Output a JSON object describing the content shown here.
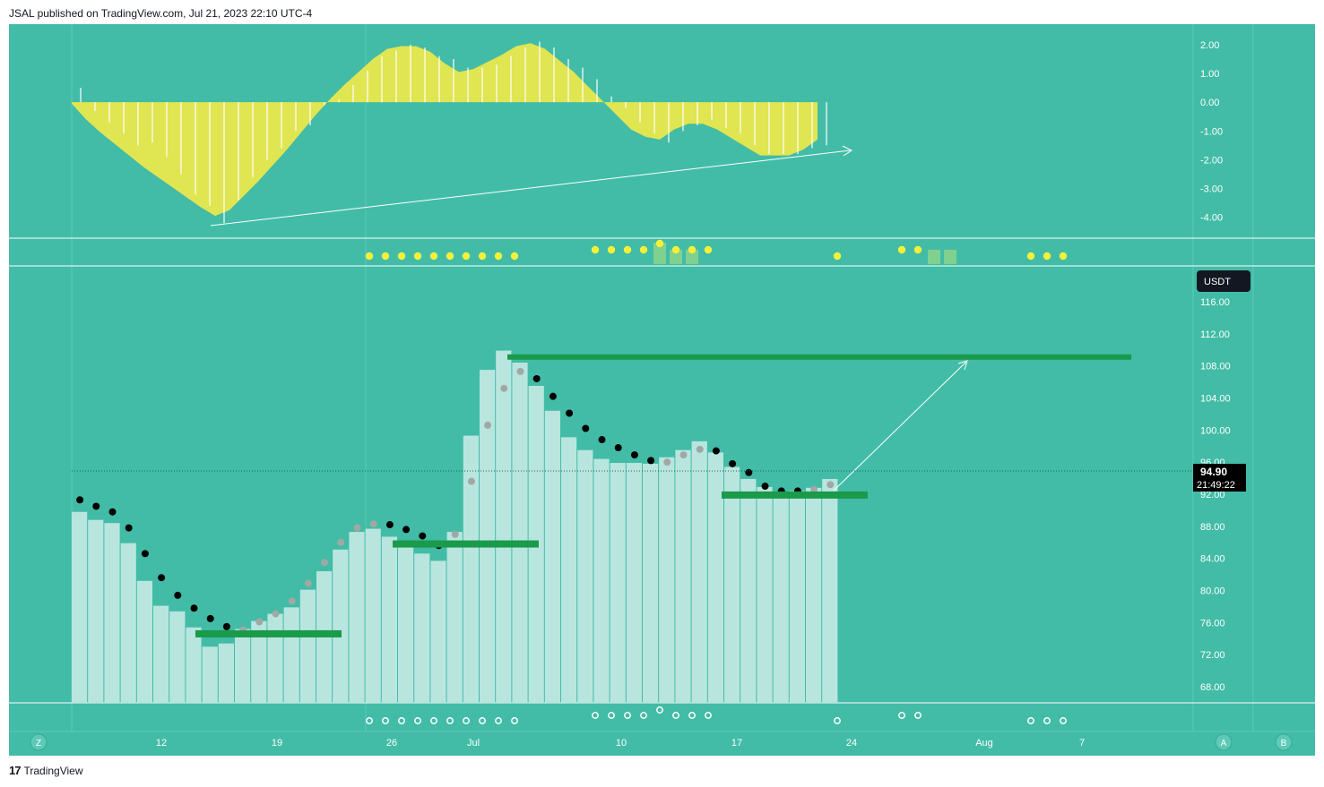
{
  "header": {
    "publish_line": "JSAL published on TradingView.com, Jul 21, 2023 22:10 UTC-4"
  },
  "footer": {
    "logo_text": "TradingView",
    "logo_mark": "17"
  },
  "colors": {
    "background": "#42bca6",
    "macd_fill": "#e0e552",
    "bar_fill": "#b8e6df",
    "psar_bear": "#000000",
    "psar_bull": "#a0a8a6",
    "support_line": "#1a9a4a",
    "trend_line": "#ffffff",
    "dot_yellow": "#f5f03a"
  },
  "currency_badge": "USDT",
  "price_badge": {
    "price": "94.90",
    "countdown": "21:49:22"
  },
  "corner_buttons": {
    "left": "Z",
    "right_a": "A",
    "right_b": "B"
  },
  "chart_data": [
    {
      "type": "area",
      "name_hint": "macd-panel",
      "y_ticks": [
        "2.00",
        "1.00",
        "0.00",
        "-1.00",
        "-2.00",
        "-3.00",
        "-4.00"
      ],
      "ylim": [
        -4.6,
        2.4
      ],
      "line_values": [
        -0.05,
        -0.6,
        -1.05,
        -1.45,
        -1.85,
        -2.25,
        -2.6,
        -2.95,
        -3.3,
        -3.65,
        -3.95,
        -3.75,
        -3.25,
        -2.75,
        -2.2,
        -1.65,
        -1.05,
        -0.45,
        0.1,
        0.6,
        1.05,
        1.5,
        1.85,
        1.95,
        1.95,
        1.75,
        1.35,
        1.05,
        1.15,
        1.4,
        1.65,
        1.95,
        2.05,
        1.85,
        1.45,
        1.05,
        0.55,
        0.05,
        -0.45,
        -0.95,
        -1.2,
        -1.3,
        -0.95,
        -0.75,
        -0.75,
        -0.95,
        -1.25,
        -1.55,
        -1.85,
        -1.85,
        -1.85,
        -1.65,
        -1.3
      ],
      "histogram": [
        0.5,
        -0.3,
        -0.7,
        -1.1,
        -1.5,
        -1.4,
        -1.9,
        -2.5,
        -3.2,
        -3.6,
        -4.2,
        -3.4,
        -2.6,
        -2.0,
        -1.6,
        -1.0,
        -0.8,
        -0.1,
        0.1,
        0.6,
        1.1,
        1.6,
        1.8,
        2.0,
        1.9,
        1.6,
        1.5,
        1.2,
        1.2,
        1.3,
        1.6,
        1.9,
        2.1,
        1.9,
        1.5,
        1.2,
        0.8,
        0.2,
        -0.2,
        -0.7,
        -1.1,
        -1.4,
        -1.0,
        -0.8,
        -0.6,
        -0.9,
        -1.1,
        -1.5,
        -1.8,
        -1.8,
        -1.8,
        -1.6,
        -1.5
      ]
    },
    {
      "type": "scatter",
      "name_hint": "signal-dots-panel",
      "dot_levels": [
        0,
        0,
        0,
        0,
        0,
        0,
        0,
        0,
        0,
        1,
        1,
        1,
        1,
        1,
        1,
        1,
        1,
        1,
        1,
        0,
        0,
        0,
        0,
        2,
        2,
        2,
        2,
        3,
        2,
        2,
        2,
        0,
        0,
        0,
        0,
        0,
        0,
        0,
        1,
        0,
        0,
        0,
        2,
        2,
        0,
        0,
        0,
        0,
        0,
        0,
        1,
        1,
        1
      ],
      "bar_levels": [
        0,
        0,
        0,
        0,
        0,
        0,
        0,
        0,
        0,
        0,
        0,
        0,
        0,
        0,
        0,
        0,
        0,
        0,
        0,
        0,
        0,
        0,
        0,
        0,
        0,
        0,
        0,
        3,
        2,
        2,
        0,
        0,
        0,
        0,
        0,
        0,
        0,
        0,
        0,
        0,
        0,
        0,
        0,
        0,
        2,
        2,
        0,
        0,
        0,
        0,
        0,
        0,
        0
      ]
    },
    {
      "type": "bar",
      "name_hint": "price-panel",
      "y_ticks": [
        "116.00",
        "112.00",
        "108.00",
        "104.00",
        "100.00",
        "96.00",
        "92.00",
        "88.00",
        "84.00",
        "80.00",
        "76.00",
        "72.00",
        "68.00"
      ],
      "ylim": [
        66.0,
        118.0
      ],
      "x_ticks": [
        "12",
        "19",
        "26",
        "Jul",
        "10",
        "17",
        "24",
        "Aug",
        "7"
      ],
      "values": [
        89.8,
        88.8,
        88.4,
        85.9,
        81.2,
        78.1,
        77.4,
        75.4,
        73.0,
        73.4,
        75.2,
        76.2,
        77.1,
        77.9,
        80.1,
        82.4,
        85.1,
        87.3,
        87.7,
        86.7,
        85.9,
        84.6,
        83.7,
        87.3,
        99.3,
        107.5,
        109.9,
        108.4,
        105.5,
        102.4,
        99.1,
        97.5,
        96.4,
        95.9,
        95.9,
        95.8,
        96.6,
        97.5,
        98.6,
        97.2,
        95.4,
        93.9,
        92.9,
        92.3,
        92.4,
        92.8,
        93.9
      ],
      "psar": [
        91.3,
        90.5,
        89.8,
        87.8,
        84.6,
        81.6,
        79.4,
        77.8,
        76.5,
        75.5,
        75.1,
        76.1,
        77.1,
        78.7,
        80.9,
        83.5,
        86.0,
        87.8,
        88.3,
        88.2,
        87.6,
        86.8,
        85.6,
        87.0,
        93.6,
        100.6,
        105.2,
        107.3,
        106.4,
        104.2,
        102.1,
        100.2,
        98.8,
        97.8,
        96.9,
        96.2,
        96.0,
        96.9,
        97.6,
        97.4,
        95.8,
        94.7,
        93.0,
        92.4,
        92.4,
        92.6,
        93.2
      ],
      "psar_bull": [
        false,
        false,
        false,
        false,
        false,
        false,
        false,
        false,
        false,
        false,
        true,
        true,
        true,
        true,
        true,
        true,
        true,
        true,
        true,
        false,
        false,
        false,
        false,
        true,
        true,
        true,
        true,
        true,
        false,
        false,
        false,
        false,
        false,
        false,
        false,
        false,
        true,
        true,
        true,
        false,
        false,
        false,
        false,
        false,
        false,
        true,
        true
      ],
      "support_levels": [
        74.6,
        85.8,
        91.9
      ],
      "resistance_level": 109.1,
      "current_price": 94.9
    }
  ]
}
